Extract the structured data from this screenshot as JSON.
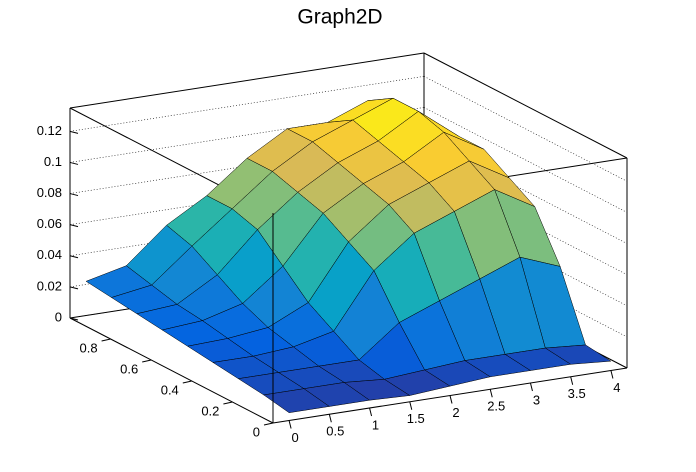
{
  "chart_data": {
    "type": "surface",
    "title": "Graph2D",
    "x": [
      0,
      0.5,
      1,
      1.5,
      2,
      2.5,
      3,
      3.5,
      4
    ],
    "y": [
      0,
      0.125,
      0.25,
      0.375,
      0.5,
      0.625,
      0.75,
      0.875,
      1
    ],
    "z": [
      [
        0.005,
        0.005,
        0.005,
        0.004,
        0.006,
        0.008,
        0.008,
        0.008,
        0.006
      ],
      [
        0.008,
        0.008,
        0.008,
        0.006,
        0.008,
        0.01,
        0.01,
        0.01,
        0.008
      ],
      [
        0.01,
        0.01,
        0.01,
        0.01,
        0.03,
        0.04,
        0.05,
        0.06,
        0.05
      ],
      [
        0.012,
        0.012,
        0.014,
        0.02,
        0.055,
        0.075,
        0.085,
        0.095,
        0.08
      ],
      [
        0.014,
        0.015,
        0.018,
        0.03,
        0.065,
        0.085,
        0.095,
        0.105,
        0.09
      ],
      [
        0.016,
        0.018,
        0.025,
        0.045,
        0.075,
        0.09,
        0.1,
        0.115,
        0.1
      ],
      [
        0.018,
        0.02,
        0.035,
        0.06,
        0.08,
        0.095,
        0.105,
        0.12,
        0.1
      ],
      [
        0.02,
        0.024,
        0.045,
        0.065,
        0.085,
        0.1,
        0.11,
        0.12,
        0.1
      ],
      [
        0.022,
        0.028,
        0.05,
        0.065,
        0.085,
        0.1,
        0.1,
        0.11,
        0.09
      ]
    ],
    "xlim": [
      -0.2,
      4.2
    ],
    "ylim": [
      0,
      1
    ],
    "zlim": [
      0,
      0.135
    ],
    "xticks": [
      0,
      0.5,
      1,
      1.5,
      2,
      2.5,
      3,
      3.5,
      4
    ],
    "yticks": [
      0,
      0.2,
      0.4,
      0.6,
      0.8
    ],
    "zticks": [
      0,
      0.02,
      0.04,
      0.06,
      0.08,
      0.1,
      0.12
    ],
    "colorscale": [
      "#352a87",
      "#0363e1",
      "#1485d4",
      "#06a7c6",
      "#38b99e",
      "#92bf73",
      "#d9ba56",
      "#fcce2e",
      "#f9fb0e"
    ],
    "grid": true
  }
}
